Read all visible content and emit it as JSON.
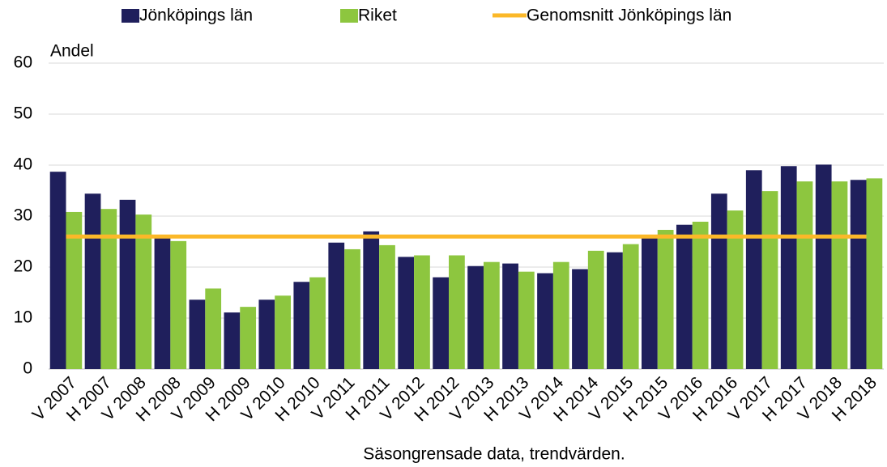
{
  "chart_data": {
    "type": "bar",
    "y_label": "Andel",
    "x_label": "Säsongrensade data, trendvärden.",
    "categories": [
      "V 2007",
      "H 2007",
      "V 2008",
      "H 2008",
      "V 2009",
      "H 2009",
      "V 2010",
      "H 2010",
      "V 2011",
      "H 2011",
      "V 2012",
      "H 2012",
      "V 2013",
      "H 2013",
      "V 2014",
      "H 2014",
      "V 2015",
      "H 2015",
      "V 2016",
      "H 2016",
      "V 2017",
      "H 2017",
      "V 2018",
      "H 2018"
    ],
    "series": [
      {
        "name": "Jönköpings län",
        "color": "#1f1f5c",
        "type": "bar",
        "values": [
          38.7,
          34.4,
          33.2,
          25.7,
          13.6,
          11.1,
          13.6,
          17.1,
          24.8,
          27.0,
          22.0,
          18.0,
          20.2,
          20.7,
          18.8,
          19.6,
          22.9,
          26.0,
          28.3,
          34.4,
          39.0,
          39.8,
          40.1,
          37.1
        ]
      },
      {
        "name": "Riket",
        "color": "#8dc63f",
        "type": "bar",
        "values": [
          30.8,
          31.4,
          30.3,
          25.1,
          15.8,
          12.2,
          14.4,
          18.0,
          23.5,
          24.3,
          22.3,
          22.3,
          21.0,
          19.1,
          21.0,
          23.2,
          24.5,
          27.3,
          28.9,
          31.1,
          34.9,
          36.8,
          36.8,
          37.4
        ]
      },
      {
        "name": "Genomsnitt Jönköpings län",
        "color": "#fbb829",
        "type": "line",
        "values": [
          26,
          26,
          26,
          26,
          26,
          26,
          26,
          26,
          26,
          26,
          26,
          26,
          26,
          26,
          26,
          26,
          26,
          26,
          26,
          26,
          26,
          26,
          26,
          26
        ]
      }
    ],
    "ylim": [
      0,
      60
    ],
    "yticks": [
      0,
      10,
      20,
      30,
      40,
      50,
      60
    ],
    "grid": true,
    "legend": "top"
  }
}
